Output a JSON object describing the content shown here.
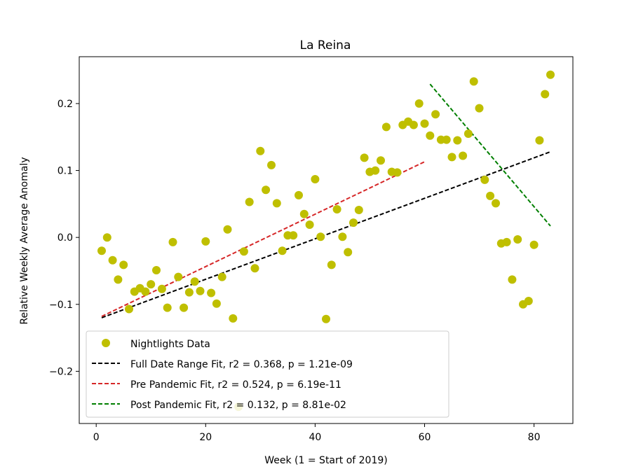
{
  "chart_data": {
    "type": "scatter",
    "title": "La Reina",
    "xlabel": "Week (1 = Start of 2019)",
    "ylabel": "Relative Weekly Average Anomaly",
    "xlim": [
      -3.1,
      87.1
    ],
    "ylim": [
      -0.278,
      0.27
    ],
    "xticks": [
      0,
      20,
      40,
      60,
      80
    ],
    "yticks": [
      -0.2,
      -0.1,
      0.0,
      0.1,
      0.2
    ],
    "ytick_labels": [
      "−0.2",
      "−0.1",
      "0.0",
      "0.1",
      "0.2"
    ],
    "grid": false,
    "legend_position": "lower-left",
    "series": [
      {
        "name": "Nightlights Data",
        "kind": "scatter",
        "color": "#bfbf00",
        "x": [
          1,
          2,
          3,
          4,
          5,
          6,
          7,
          8,
          9,
          10,
          11,
          12,
          13,
          14,
          15,
          16,
          17,
          18,
          19,
          20,
          21,
          22,
          23,
          24,
          25,
          26,
          27,
          28,
          29,
          30,
          31,
          32,
          33,
          34,
          35,
          36,
          37,
          38,
          39,
          40,
          41,
          42,
          43,
          44,
          45,
          46,
          47,
          48,
          49,
          50,
          51,
          52,
          53,
          54,
          55,
          56,
          57,
          58,
          59,
          60,
          61,
          62,
          63,
          64,
          65,
          66,
          67,
          68,
          69,
          70,
          71,
          72,
          73,
          74,
          75,
          76,
          77,
          78,
          79,
          80,
          81,
          82,
          83
        ],
        "y": [
          -0.02,
          0.0,
          -0.034,
          -0.063,
          -0.041,
          -0.107,
          -0.081,
          -0.076,
          -0.081,
          -0.07,
          -0.049,
          -0.077,
          -0.105,
          -0.007,
          -0.059,
          -0.105,
          -0.082,
          -0.066,
          -0.08,
          -0.006,
          -0.083,
          -0.099,
          -0.059,
          0.012,
          -0.121,
          -0.253,
          -0.021,
          0.053,
          -0.046,
          0.129,
          0.071,
          0.108,
          0.051,
          -0.02,
          0.003,
          0.003,
          0.063,
          0.035,
          0.019,
          0.087,
          0.001,
          -0.122,
          -0.041,
          0.042,
          0.001,
          -0.022,
          0.022,
          0.041,
          0.119,
          0.098,
          0.1,
          0.115,
          0.165,
          0.098,
          0.097,
          0.168,
          0.173,
          0.168,
          0.2,
          0.17,
          0.152,
          0.184,
          0.146,
          0.146,
          0.12,
          0.145,
          0.122,
          0.155,
          0.233,
          0.193,
          0.086,
          0.062,
          0.051,
          -0.009,
          -0.007,
          -0.063,
          -0.003,
          -0.1,
          -0.095,
          -0.011,
          0.145,
          0.214,
          0.243
        ]
      },
      {
        "name": "Full Date Range Fit, r2 = 0.368, p = 1.21e-09",
        "kind": "line",
        "color": "#000000",
        "x": [
          1,
          83
        ],
        "y": [
          -0.12,
          0.128
        ]
      },
      {
        "name": "Pre Pandemic Fit, r2 = 0.524, p = 6.19e-11",
        "kind": "line",
        "color": "#d62728",
        "x": [
          1,
          60
        ],
        "y": [
          -0.118,
          0.113
        ]
      },
      {
        "name": "Post Pandemic Fit, r2 = 0.132, p = 8.81e-02",
        "kind": "line",
        "color": "#007f00",
        "x": [
          61,
          83
        ],
        "y": [
          0.229,
          0.017
        ]
      }
    ]
  }
}
